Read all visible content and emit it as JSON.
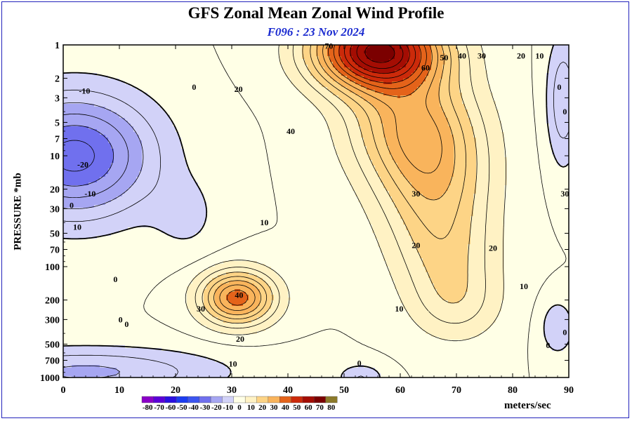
{
  "title": "GFS Zonal Mean Zonal Wind Profile",
  "subtitle": "F096 : 23 Nov 2024",
  "ylabel": "PRESSURE *mb",
  "units_label": "meters/sec",
  "chart_data": {
    "type": "heatmap",
    "title": "GFS Zonal Mean Zonal Wind Profile",
    "subtitle": "F096 : 23 Nov 2024",
    "xlabel": "",
    "ylabel": "PRESSURE *mb",
    "y_scale": "log",
    "y_inverted": true,
    "xlim": [
      0,
      90
    ],
    "ylim": [
      1000,
      1
    ],
    "x_ticks": [
      0,
      10,
      20,
      30,
      40,
      50,
      60,
      70,
      80,
      90
    ],
    "y_ticks": [
      1,
      2,
      3,
      5,
      7,
      10,
      20,
      30,
      50,
      70,
      100,
      200,
      300,
      500,
      700,
      1000
    ],
    "colorbar": {
      "units": "meters/sec",
      "levels": [
        -80,
        -70,
        -60,
        -50,
        -40,
        -30,
        -20,
        -10,
        0,
        10,
        20,
        30,
        40,
        50,
        60,
        70,
        80
      ],
      "colors": [
        "#8a00c8",
        "#5b00d8",
        "#2a10e0",
        "#1c3cf0",
        "#3c55f0",
        "#7070ee",
        "#a6a6f2",
        "#d2d2f8",
        "#ffffe6",
        "#fff2c4",
        "#fdd486",
        "#f9b45c",
        "#e4631a",
        "#cc2a0a",
        "#a40d03",
        "#7b0000",
        "#8c7a2a"
      ]
    },
    "contour_labels": [
      {
        "x": 3.8,
        "p": 2.6,
        "text": "-10"
      },
      {
        "x": 3.5,
        "p": 12,
        "text": "-20"
      },
      {
        "x": 4.8,
        "p": 22,
        "text": "-10"
      },
      {
        "x": 1.5,
        "p": 28,
        "text": "0"
      },
      {
        "x": 2.5,
        "p": 44,
        "text": "10"
      },
      {
        "x": 9.3,
        "p": 130,
        "text": "0"
      },
      {
        "x": 10.2,
        "p": 300,
        "text": "0"
      },
      {
        "x": 11.3,
        "p": 330,
        "text": "0"
      },
      {
        "x": 23.3,
        "p": 2.4,
        "text": "0"
      },
      {
        "x": 31.2,
        "p": 2.5,
        "text": "20"
      },
      {
        "x": 40.5,
        "p": 6,
        "text": "40"
      },
      {
        "x": 47.3,
        "p": 1.02,
        "text": "70"
      },
      {
        "x": 64.5,
        "p": 1.6,
        "text": "60"
      },
      {
        "x": 67.8,
        "p": 1.3,
        "text": "50"
      },
      {
        "x": 71,
        "p": 1.25,
        "text": "40"
      },
      {
        "x": 74.5,
        "p": 1.25,
        "text": "30"
      },
      {
        "x": 81.5,
        "p": 1.25,
        "text": "20"
      },
      {
        "x": 84.8,
        "p": 1.25,
        "text": "10"
      },
      {
        "x": 88.3,
        "p": 2.4,
        "text": "0"
      },
      {
        "x": 89.3,
        "p": 4,
        "text": "0"
      },
      {
        "x": 62.8,
        "p": 22,
        "text": "30"
      },
      {
        "x": 89.3,
        "p": 22,
        "text": "30"
      },
      {
        "x": 35.8,
        "p": 40,
        "text": "10"
      },
      {
        "x": 62.8,
        "p": 64,
        "text": "20"
      },
      {
        "x": 76.5,
        "p": 68,
        "text": "20"
      },
      {
        "x": 82,
        "p": 150,
        "text": "10"
      },
      {
        "x": 59.8,
        "p": 240,
        "text": "10"
      },
      {
        "x": 89.3,
        "p": 390,
        "text": "0"
      },
      {
        "x": 86.3,
        "p": 510,
        "text": "0"
      },
      {
        "x": 31.3,
        "p": 180,
        "text": "40"
      },
      {
        "x": 24.5,
        "p": 240,
        "text": "30"
      },
      {
        "x": 31.5,
        "p": 450,
        "text": "20"
      },
      {
        "x": 30.2,
        "p": 750,
        "text": "10"
      },
      {
        "x": 52.7,
        "p": 740,
        "text": "0"
      }
    ]
  }
}
